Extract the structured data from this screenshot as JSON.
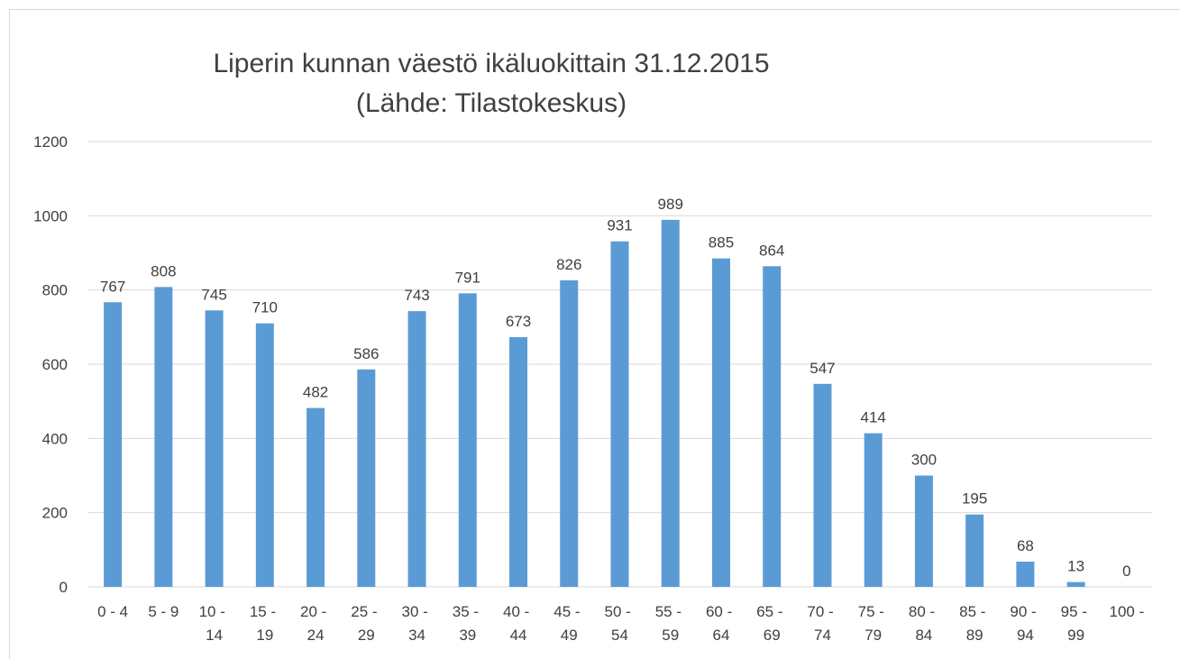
{
  "chart_data": {
    "type": "bar",
    "title": [
      "Liperin kunnan väestö ikäluokittain 31.12.2015",
      "(Lähde: Tilastokeskus)"
    ],
    "categories": [
      "0 - 4",
      "5 - 9",
      "10 - 14",
      "15 - 19",
      "20 - 24",
      "25 - 29",
      "30 - 34",
      "35 - 39",
      "40 - 44",
      "45 - 49",
      "50 - 54",
      "55 - 59",
      "60 - 64",
      "65 - 69",
      "70 - 74",
      "75 - 79",
      "80 - 84",
      "85 - 89",
      "90 - 94",
      "95 - 99",
      "100 -"
    ],
    "values": [
      767,
      808,
      745,
      710,
      482,
      586,
      743,
      791,
      673,
      826,
      931,
      989,
      885,
      864,
      547,
      414,
      300,
      195,
      68,
      13,
      0
    ],
    "color": "#5b9bd5",
    "ylim": [
      0,
      1200
    ],
    "yticks": [
      0,
      200,
      400,
      600,
      800,
      1000,
      1200
    ],
    "grid": true
  }
}
